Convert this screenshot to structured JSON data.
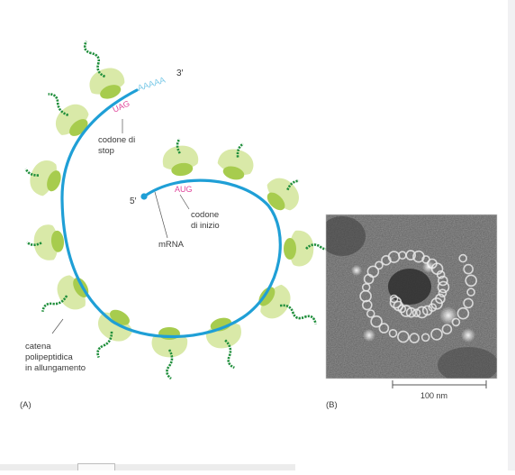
{
  "panel_a": {
    "label": "(A)",
    "labels": {
      "poly_a": "AAAAA",
      "three_prime": "3′",
      "five_prime": "5′",
      "stop_codon": "UAG",
      "start_codon": "AUG",
      "stop_line1": "codone di",
      "stop_line2": "stop",
      "start_line1": "codone",
      "start_line2": "di inizio",
      "mrna": "mRNA",
      "chain_line1": "catena",
      "chain_line2": "polipeptidica",
      "chain_line3": "in allungamento"
    }
  },
  "panel_b": {
    "label": "(B)",
    "scale_bar": "100 nm"
  },
  "colors": {
    "mrna": "#1f9fd6",
    "poly_a": "#7fcbe8",
    "ribosome_small": "#d9e9a8",
    "ribosome_large": "#a7cc4e",
    "peptide": "#1f8e3b",
    "codon": "#e0449b",
    "text": "#3a3a3a"
  }
}
